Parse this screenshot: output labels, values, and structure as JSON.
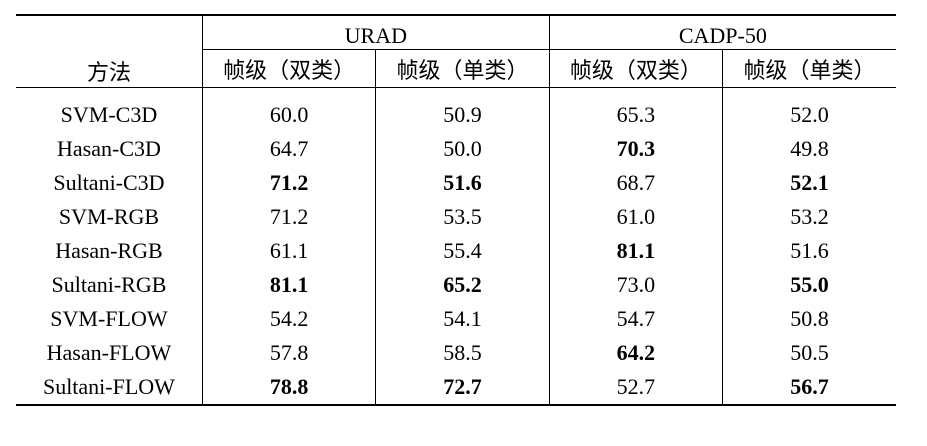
{
  "table": {
    "method_header": "方法",
    "groups": [
      {
        "name": "URAD"
      },
      {
        "name": "CADP-50"
      }
    ],
    "sub_headers": [
      "帧级（双类）",
      "帧级（单类）",
      "帧级（双类）",
      "帧级（单类）"
    ],
    "rows": [
      {
        "method": "SVM-C3D",
        "values": [
          "60.0",
          "50.9",
          "65.3",
          "52.0"
        ],
        "bold": [
          false,
          false,
          false,
          false
        ]
      },
      {
        "method": "Hasan-C3D",
        "values": [
          "64.7",
          "50.0",
          "70.3",
          "49.8"
        ],
        "bold": [
          false,
          false,
          true,
          false
        ]
      },
      {
        "method": "Sultani-C3D",
        "values": [
          "71.2",
          "51.6",
          "68.7",
          "52.1"
        ],
        "bold": [
          true,
          true,
          false,
          true
        ]
      },
      {
        "method": "SVM-RGB",
        "values": [
          "71.2",
          "53.5",
          "61.0",
          "53.2"
        ],
        "bold": [
          false,
          false,
          false,
          false
        ]
      },
      {
        "method": "Hasan-RGB",
        "values": [
          "61.1",
          "55.4",
          "81.1",
          "51.6"
        ],
        "bold": [
          false,
          false,
          true,
          false
        ]
      },
      {
        "method": "Sultani-RGB",
        "values": [
          "81.1",
          "65.2",
          "73.0",
          "55.0"
        ],
        "bold": [
          true,
          true,
          false,
          true
        ]
      },
      {
        "method": "SVM-FLOW",
        "values": [
          "54.2",
          "54.1",
          "54.7",
          "50.8"
        ],
        "bold": [
          false,
          false,
          false,
          false
        ]
      },
      {
        "method": "Hasan-FLOW",
        "values": [
          "57.8",
          "58.5",
          "64.2",
          "50.5"
        ],
        "bold": [
          false,
          false,
          true,
          false
        ]
      },
      {
        "method": "Sultani-FLOW",
        "values": [
          "78.8",
          "72.7",
          "52.7",
          "56.7"
        ],
        "bold": [
          true,
          true,
          false,
          true
        ]
      }
    ]
  }
}
